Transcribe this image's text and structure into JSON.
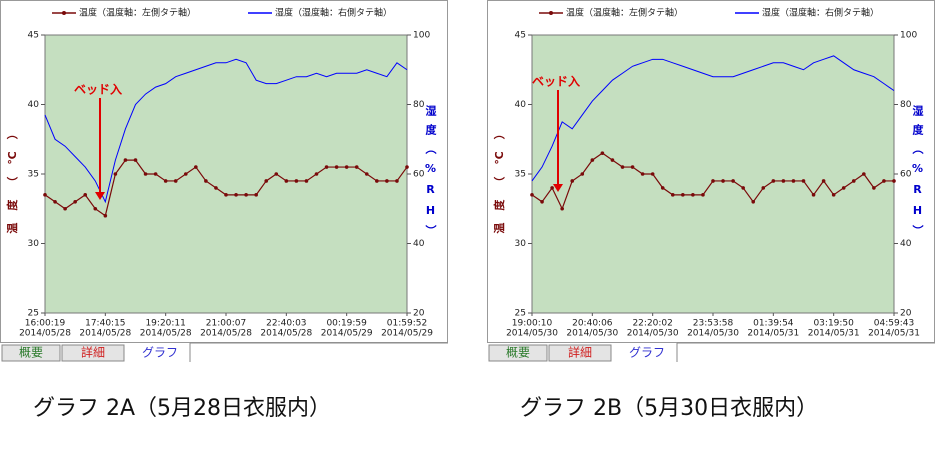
{
  "chart_data": [
    {
      "type": "line",
      "series": [
        {
          "name": "温度（温度軸：左側タテ軸）",
          "color": "#7a0a0a",
          "axis": "y",
          "values": [
            33.5,
            33,
            32.5,
            33,
            33.5,
            32.5,
            32,
            35,
            36,
            36,
            35,
            35,
            34.5,
            34.5,
            35,
            35.5,
            34.5,
            34,
            33.5,
            33.5,
            33.5,
            33.5,
            34.5,
            35,
            34.5,
            34.5,
            34.5,
            35,
            35.5,
            35.5,
            35.5,
            35.5,
            35,
            34.5,
            34.5,
            34.5,
            35.5
          ]
        },
        {
          "name": "湿度（湿度軸：右側タテ軸）",
          "color": "#0000ff",
          "axis": "y2",
          "values": [
            77,
            70,
            68,
            65,
            62,
            58,
            52,
            64,
            73,
            80,
            83,
            85,
            86,
            88,
            89,
            90,
            91,
            92,
            92,
            93,
            92,
            87,
            86,
            86,
            87,
            88,
            88,
            89,
            88,
            89,
            89,
            89,
            90,
            89,
            88,
            92,
            90
          ]
        }
      ],
      "ylim": [
        25,
        45
      ],
      "yticks": [
        25,
        30,
        35,
        40,
        45
      ],
      "y2lim": [
        20,
        100
      ],
      "y2ticks": [
        20,
        40,
        60,
        80,
        100
      ],
      "y_label": "温度（℃）",
      "y2_label": "湿度（%RH）",
      "xtick_labels": [
        [
          "16:00:19",
          "2014/05/28"
        ],
        [
          "17:40:15",
          "2014/05/28"
        ],
        [
          "19:20:11",
          "2014/05/28"
        ],
        [
          "21:00:07",
          "2014/05/28"
        ],
        [
          "22:40:03",
          "2014/05/28"
        ],
        [
          "00:19:59",
          "2014/05/29"
        ],
        [
          "01:59:52",
          "2014/05/29"
        ]
      ],
      "annotation": "ベッド入",
      "background": "#c5dfc0",
      "tabs": [
        "概要",
        "詳細",
        "グラフ"
      ],
      "caption": "グラフ 2A（5月28日衣服内）"
    },
    {
      "type": "line",
      "series": [
        {
          "name": "温度（温度軸：左側タテ軸）",
          "color": "#7a0a0a",
          "axis": "y",
          "values": [
            33.5,
            33,
            34,
            32.5,
            34.5,
            35,
            36,
            36.5,
            36,
            35.5,
            35.5,
            35,
            35,
            34,
            33.5,
            33.5,
            33.5,
            33.5,
            34.5,
            34.5,
            34.5,
            34,
            33,
            34,
            34.5,
            34.5,
            34.5,
            34.5,
            33.5,
            34.5,
            33.5,
            34,
            34.5,
            35,
            34,
            34.5,
            34.5
          ]
        },
        {
          "name": "湿度（湿度軸：右側タテ軸）",
          "color": "#0000ff",
          "axis": "y2",
          "values": [
            58,
            62,
            68,
            75,
            73,
            77,
            81,
            84,
            87,
            89,
            91,
            92,
            93,
            93,
            92,
            91,
            90,
            89,
            88,
            88,
            88,
            89,
            90,
            91,
            92,
            92,
            91,
            90,
            92,
            93,
            94,
            92,
            90,
            89,
            88,
            86,
            84
          ]
        }
      ],
      "ylim": [
        25,
        45
      ],
      "yticks": [
        25,
        30,
        35,
        40,
        45
      ],
      "y2lim": [
        20,
        100
      ],
      "y2ticks": [
        20,
        40,
        60,
        80,
        100
      ],
      "y_label": "温度（℃）",
      "y2_label": "湿度（%RH）",
      "xtick_labels": [
        [
          "19:00:10",
          "2014/05/30"
        ],
        [
          "20:40:06",
          "2014/05/30"
        ],
        [
          "22:20:02",
          "2014/05/30"
        ],
        [
          "23:53:58",
          "2014/05/30"
        ],
        [
          "01:39:54",
          "2014/05/31"
        ],
        [
          "03:19:50",
          "2014/05/31"
        ],
        [
          "04:59:43",
          "2014/05/31"
        ]
      ],
      "annotation": "ベッド入",
      "background": "#c5dfc0",
      "tabs": [
        "概要",
        "詳細",
        "グラフ"
      ],
      "caption": "グラフ 2B（5月30日衣服内）"
    }
  ]
}
